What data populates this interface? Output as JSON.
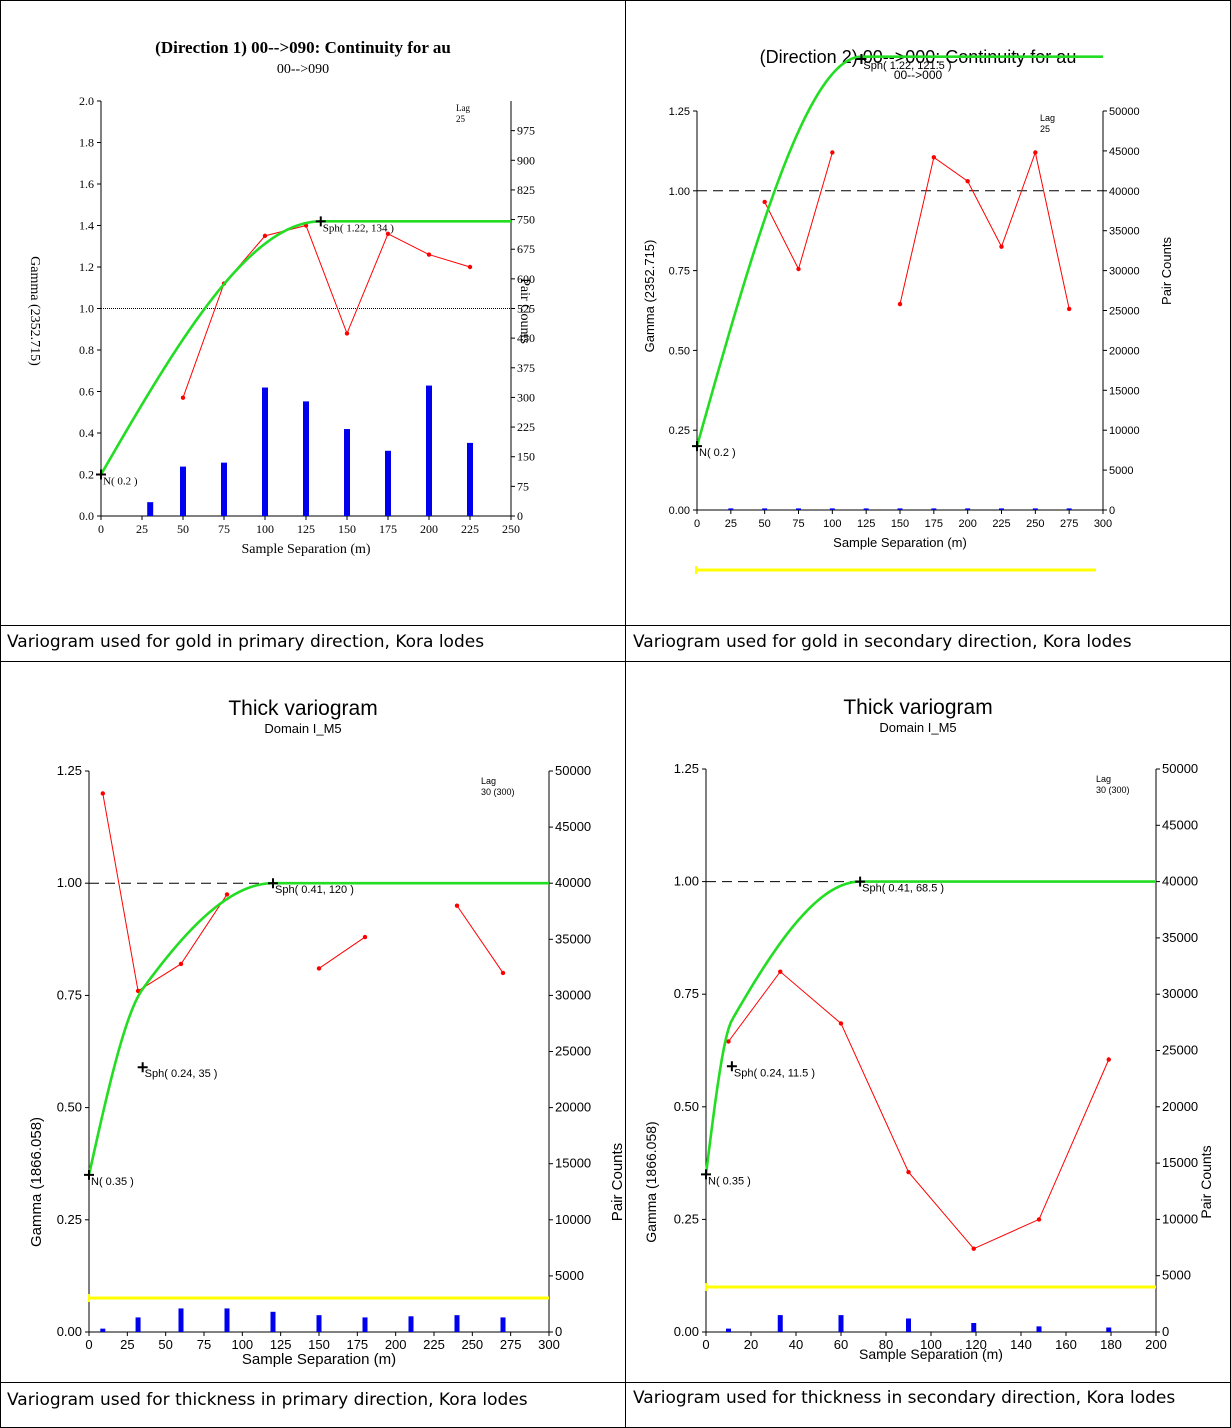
{
  "captions": [
    "Variogram used for gold in primary direction, Kora lodes",
    "Variogram used for gold in secondary direction, Kora lodes",
    "Variogram used for thickness in primary direction, Kora lodes",
    "Variogram used for thickness in secondary direction, Kora lodes"
  ],
  "colors": {
    "model": "#22dd22",
    "experimental": "#ff0000",
    "pairs": "#0000ee",
    "ruler": "#ffff00",
    "sill": "#000000"
  },
  "chart_data": [
    {
      "type": "line",
      "title": "(Direction 1)  00-->090:  Continuity for au",
      "subtitle": "00-->090",
      "xlabel": "Sample Separation (m)",
      "ylabel": "Gamma (2352.715)",
      "y2label": "Pair Counts",
      "lag_label": "Lag",
      "lag_value": "25",
      "xlim": [
        0,
        250
      ],
      "ylim": [
        0,
        2.0
      ],
      "y2lim": [
        0,
        1050
      ],
      "xticks": [
        "0",
        "25",
        "50",
        "75",
        "100",
        "125",
        "150",
        "175",
        "200",
        "225",
        "250"
      ],
      "yticks": [
        "0.0",
        "0.2",
        "0.4",
        "0.6",
        "0.8",
        "1.0",
        "1.2",
        "1.4",
        "1.6",
        "1.8",
        "2.0"
      ],
      "y2ticks": [
        "0",
        "75",
        "150",
        "225",
        "300",
        "375",
        "450",
        "525",
        "600",
        "675",
        "750",
        "825",
        "900",
        "975"
      ],
      "sill": 1.0,
      "experimental": {
        "x": [
          50,
          75,
          100,
          125,
          150,
          175,
          200,
          225
        ],
        "y": [
          0.57,
          1.12,
          1.35,
          1.4,
          0.88,
          1.36,
          1.26,
          1.2
        ]
      },
      "pair_counts": {
        "x": [
          30,
          50,
          75,
          100,
          125,
          150,
          175,
          200,
          225
        ],
        "values": [
          35,
          125,
          135,
          325,
          290,
          220,
          165,
          330,
          185
        ]
      },
      "model": {
        "nugget": 0.2,
        "structures": [
          {
            "sill": 1.22,
            "range": 134
          }
        ],
        "max_x": 250
      },
      "annotations": [
        {
          "text": "N( 0.2 )",
          "x": 0,
          "y": 0.2
        },
        {
          "text": "Sph( 1.22, 134 )",
          "x": 134,
          "y": 1.42
        }
      ]
    },
    {
      "type": "line",
      "title": "(Direction 2)  00-->000:  Continuity for au",
      "subtitle": "00-->000",
      "xlabel": "Sample Separation (m)",
      "ylabel": "Gamma (2352.715)",
      "y2label": "Pair Counts",
      "lag_label": "Lag",
      "lag_value": "25",
      "xlim": [
        0,
        300
      ],
      "ylim": [
        0,
        1.25
      ],
      "y2lim": [
        0,
        50000
      ],
      "xticks": [
        "0",
        "25",
        "50",
        "75",
        "100",
        "125",
        "150",
        "175",
        "200",
        "225",
        "250",
        "275",
        "300"
      ],
      "yticks": [
        "0.00",
        "0.25",
        "0.50",
        "0.75",
        "1.00",
        "1.25"
      ],
      "y2ticks": [
        "0",
        "5000",
        "10000",
        "15000",
        "20000",
        "25000",
        "30000",
        "35000",
        "40000",
        "45000",
        "50000"
      ],
      "sill": 1.0,
      "experimental": [
        {
          "x": [
            50,
            75,
            100
          ],
          "y": [
            0.965,
            0.755,
            1.12
          ]
        },
        {
          "x": [
            150,
            175,
            200,
            225,
            250,
            275
          ],
          "y": [
            0.645,
            1.105,
            1.03,
            0.825,
            1.12,
            0.63
          ]
        }
      ],
      "pair_counts": {
        "x": [
          25,
          50,
          75,
          100,
          125,
          150,
          175,
          200,
          225,
          250,
          275
        ],
        "values": [
          200,
          200,
          200,
          200,
          200,
          200,
          200,
          200,
          200,
          200,
          200
        ]
      },
      "model": {
        "nugget": 0.2,
        "structures": [
          {
            "sill": 1.22,
            "range": 121.5
          }
        ],
        "max_x": 300
      },
      "annotations": [
        {
          "text": "N( 0.2 )",
          "x": 0,
          "y": 0.2
        },
        {
          "text": "Sph( 1.22, 121.5 )",
          "x": 121.5,
          "y": 1.42
        }
      ]
    },
    {
      "type": "line",
      "title": "Thick variogram",
      "subtitle": "Domain I_M5",
      "xlabel": "Sample Separation (m)",
      "ylabel": "Gamma (1866.058)",
      "y2label": "Pair Counts",
      "lag_label": "Lag",
      "lag_value": "30 (300)",
      "xlim": [
        0,
        300
      ],
      "ylim": [
        0,
        1.25
      ],
      "y2lim": [
        0,
        50000
      ],
      "xticks": [
        "0",
        "25",
        "50",
        "75",
        "100",
        "125",
        "150",
        "175",
        "200",
        "225",
        "250",
        "275",
        "300"
      ],
      "yticks": [
        "0.00",
        "0.25",
        "0.50",
        "0.75",
        "1.00",
        "1.25"
      ],
      "y2ticks": [
        "0",
        "5000",
        "10000",
        "15000",
        "20000",
        "25000",
        "30000",
        "35000",
        "40000",
        "45000",
        "50000"
      ],
      "sill": 1.0,
      "experimental": [
        {
          "x": [
            9,
            32,
            60,
            90
          ],
          "y": [
            1.2,
            0.76,
            0.82,
            0.975
          ]
        },
        {
          "x": [
            150,
            180
          ],
          "y": [
            0.81,
            0.88
          ]
        },
        {
          "x": [
            240,
            270
          ],
          "y": [
            0.95,
            0.8
          ]
        }
      ],
      "pair_counts": {
        "x": [
          9,
          32,
          60,
          90,
          120,
          150,
          180,
          210,
          240,
          270
        ],
        "values": [
          300,
          1300,
          2100,
          2100,
          1800,
          1500,
          1300,
          1400,
          1500,
          1300
        ]
      },
      "model": {
        "nugget": 0.35,
        "structures": [
          {
            "sill": 0.24,
            "range": 35
          },
          {
            "sill": 0.41,
            "range": 120
          }
        ],
        "max_x": 300
      },
      "annotations": [
        {
          "text": "N( 0.35 )",
          "x": 0,
          "y": 0.35
        },
        {
          "text": "Sph( 0.24, 35 )",
          "x": 35,
          "y": 0.59
        },
        {
          "text": "Sph( 0.41, 120 )",
          "x": 120,
          "y": 1.0
        }
      ]
    },
    {
      "type": "line",
      "title": "Thick variogram",
      "subtitle": "Domain I_M5",
      "xlabel": "Sample Separation (m)",
      "ylabel": "Gamma (1866.058)",
      "y2label": "Pair Counts",
      "lag_label": "Lag",
      "lag_value": "30 (300)",
      "xlim": [
        0,
        200
      ],
      "ylim": [
        0,
        1.25
      ],
      "y2lim": [
        0,
        50000
      ],
      "xticks": [
        "0",
        "20",
        "40",
        "60",
        "80",
        "100",
        "120",
        "140",
        "160",
        "180",
        "200"
      ],
      "yticks": [
        "0.00",
        "0.25",
        "0.50",
        "0.75",
        "1.00",
        "1.25"
      ],
      "y2ticks": [
        "0",
        "5000",
        "10000",
        "15000",
        "20000",
        "25000",
        "30000",
        "35000",
        "40000",
        "45000",
        "50000"
      ],
      "sill": 1.0,
      "experimental": {
        "x": [
          10,
          33,
          60,
          90,
          119,
          148,
          179
        ],
        "y": [
          0.645,
          0.8,
          0.685,
          0.355,
          0.185,
          0.25,
          0.605
        ]
      },
      "pair_counts": {
        "x": [
          10,
          33,
          60,
          90,
          119,
          148,
          179
        ],
        "values": [
          300,
          1500,
          1500,
          1200,
          800,
          500,
          400
        ]
      },
      "model": {
        "nugget": 0.35,
        "structures": [
          {
            "sill": 0.24,
            "range": 11.5
          },
          {
            "sill": 0.41,
            "range": 68.5
          }
        ],
        "max_x": 200
      },
      "annotations": [
        {
          "text": "N( 0.35 )",
          "x": 0,
          "y": 0.35
        },
        {
          "text": "Sph( 0.24, 11.5 )",
          "x": 11.5,
          "y": 0.59
        },
        {
          "text": "Sph( 0.41, 68.5 )",
          "x": 68.5,
          "y": 1.0
        }
      ]
    }
  ]
}
